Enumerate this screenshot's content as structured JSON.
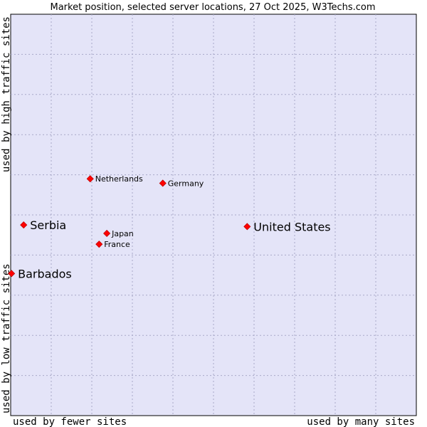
{
  "chart_data": {
    "type": "scatter",
    "title": "Market position, selected server locations, 27 Oct 2025, W3Techs.com",
    "xlabel_left": "used by fewer sites",
    "xlabel_right": "used by many sites",
    "ylabel_bottom": "used by low traffic sites",
    "ylabel_top": "used by high traffic sites",
    "xlim": [
      0,
      100
    ],
    "ylim": [
      0,
      100
    ],
    "grid": true,
    "points": [
      {
        "label": "United States",
        "x": 58.3,
        "y": 47.1,
        "size": "large"
      },
      {
        "label": "Serbia",
        "x": 3.2,
        "y": 47.5,
        "size": "large"
      },
      {
        "label": "Barbados",
        "x": 0.2,
        "y": 35.4,
        "size": "large"
      },
      {
        "label": "Netherlands",
        "x": 19.6,
        "y": 59.0,
        "size": "small"
      },
      {
        "label": "Germany",
        "x": 37.5,
        "y": 57.9,
        "size": "small"
      },
      {
        "label": "Japan",
        "x": 23.7,
        "y": 45.4,
        "size": "small"
      },
      {
        "label": "France",
        "x": 21.8,
        "y": 42.7,
        "size": "small"
      }
    ]
  },
  "colors": {
    "plot_bg": "#e4e4f8",
    "grid": "#a8a8c8",
    "marker": "#ff0000",
    "marker_edge": "#c00000"
  }
}
